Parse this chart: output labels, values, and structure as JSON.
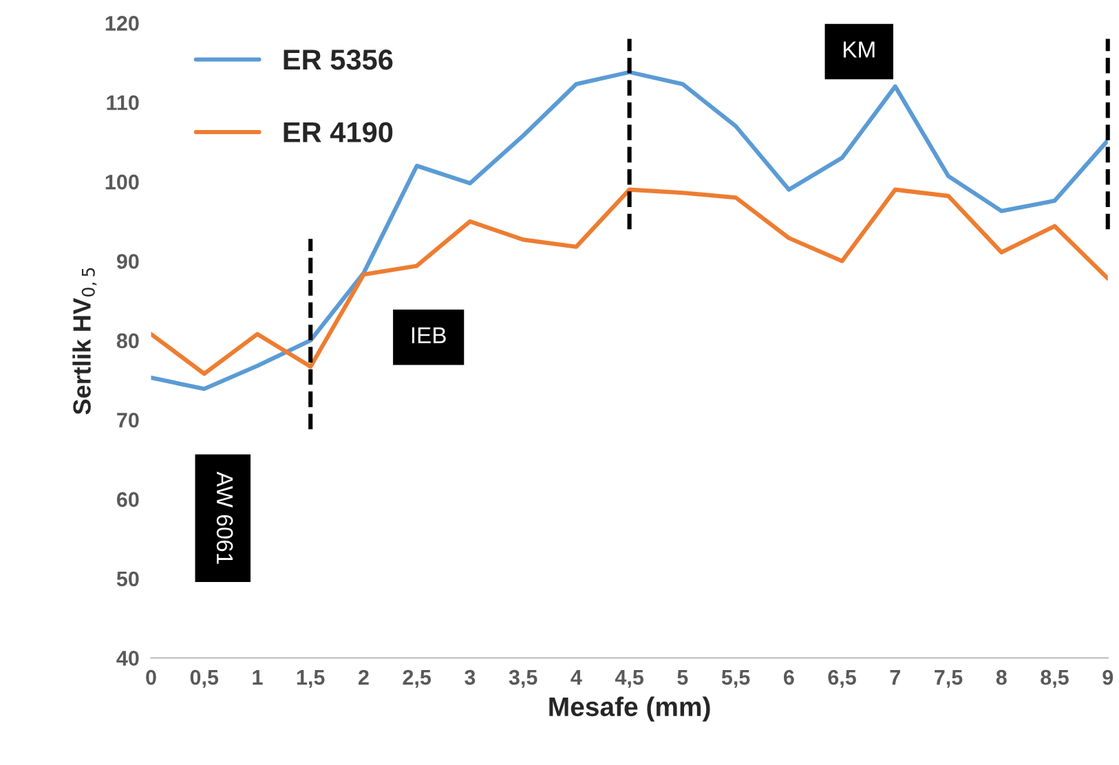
{
  "chart_data": {
    "type": "line",
    "xlabel": "Mesafe (mm)",
    "ylabel": "Sertlik HV$_{0,5}$",
    "x": [
      0,
      0.5,
      1,
      1.5,
      2,
      2.5,
      3,
      3.5,
      4,
      4.5,
      5,
      5.5,
      6,
      6.5,
      7,
      7.5,
      8,
      8.5,
      9
    ],
    "series": [
      {
        "name": "ER 5356",
        "color": "#5b9bd5",
        "values": [
          75.3,
          73.9,
          76.8,
          80,
          88.5,
          102,
          99.8,
          105.8,
          112.3,
          113.8,
          112.3,
          107,
          99,
          103,
          112,
          100.7,
          96.3,
          97.6,
          105.2
        ]
      },
      {
        "name": "ER 4190",
        "color": "#ed7d31",
        "values": [
          80.8,
          75.8,
          80.8,
          76.7,
          88.3,
          89.4,
          95,
          92.7,
          91.8,
          99,
          98.6,
          98,
          92.9,
          90,
          99,
          98.2,
          91.1,
          94.4,
          87.8
        ]
      }
    ],
    "xlim": [
      0,
      9
    ],
    "ylim": [
      40,
      120
    ],
    "xticks": [
      0,
      {
        "value": 0.5,
        "label": "0,5"
      },
      1,
      {
        "value": 1.5,
        "label": "1,5"
      },
      2,
      {
        "value": 2.5,
        "label": "2,5"
      },
      3,
      {
        "value": 3.5,
        "label": "3,5"
      },
      4,
      {
        "value": 4.5,
        "label": "4,5"
      },
      5,
      {
        "value": 5.5,
        "label": "5,5"
      },
      6,
      {
        "value": 6.5,
        "label": "6,5"
      },
      7,
      {
        "value": 7.5,
        "label": "7,5"
      },
      8,
      {
        "value": 8.5,
        "label": "8,5"
      },
      9
    ],
    "yticks": [
      40,
      50,
      60,
      70,
      80,
      90,
      100,
      110,
      120
    ],
    "ref_lines": [
      {
        "axis": "x",
        "value": 1.5,
        "color": "#000000",
        "line_style": "dashed"
      },
      {
        "axis": "x",
        "value": 4.5,
        "color": "#000000",
        "line_style": "dashed"
      },
      {
        "axis": "x",
        "value": 9,
        "color": "#000000",
        "line_style": "dashed"
      }
    ],
    "annotations": [
      "AW 6061",
      "IEB",
      "KM"
    ],
    "legend": "top left",
    "grid": false,
    "marker": "none",
    "line_style": "solid"
  }
}
